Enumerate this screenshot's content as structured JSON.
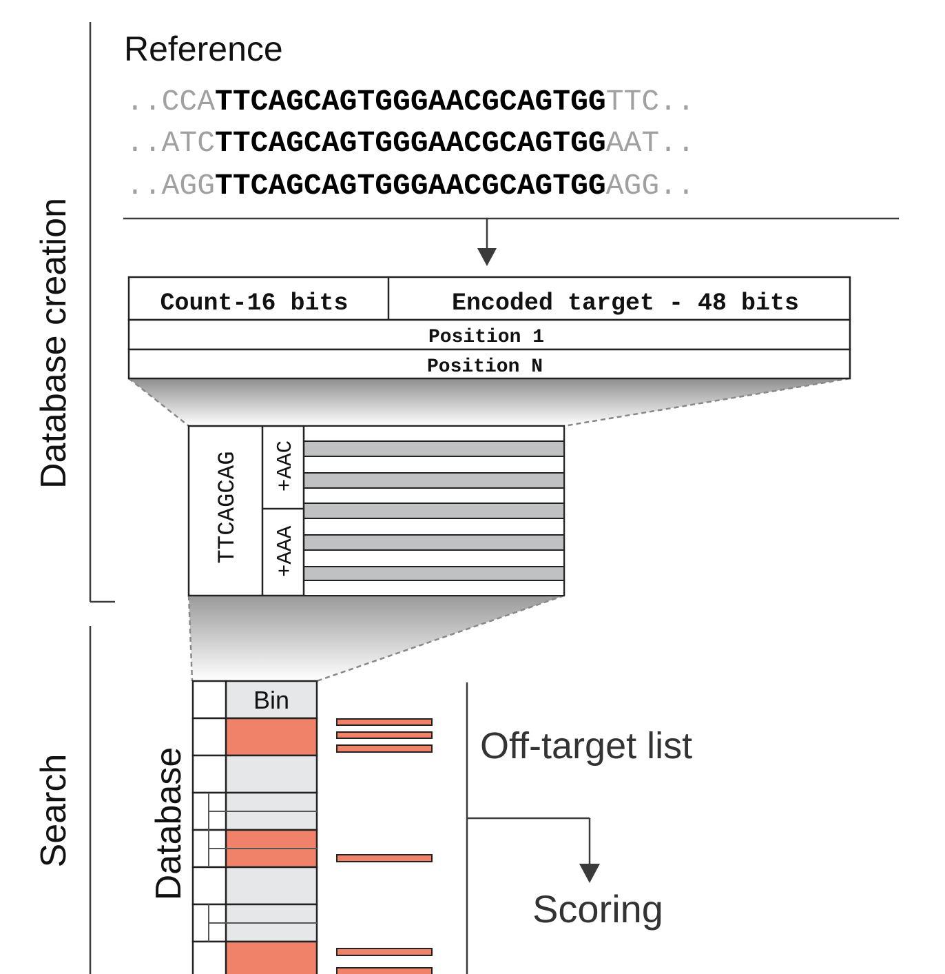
{
  "section_labels": {
    "database_creation": "Database creation",
    "search": "Search"
  },
  "reference": {
    "title": "Reference",
    "rows": [
      {
        "left_dots": "..",
        "prefix": "CCA",
        "core": "TTCAGCAGTGGGAACGCAGTGG",
        "suffix": "TTC",
        "right_dots": ".."
      },
      {
        "left_dots": "..",
        "prefix": "ATC",
        "core": "TTCAGCAGTGGGAACGCAGTGG",
        "suffix": "AAT",
        "right_dots": ".."
      },
      {
        "left_dots": "..",
        "prefix": "AGG",
        "core": "TTCAGCAGTGGGAACGCAGTGG",
        "suffix": "AGG",
        "right_dots": ".."
      }
    ]
  },
  "record": {
    "count_label": "Count-16 bits",
    "encoded_label": "Encoded target - 48 bits",
    "position_first": "Position 1",
    "position_last": "Position N"
  },
  "bin_detail": {
    "prefix_label": "TTCAGCAG",
    "suffix_labels": [
      "+AAC",
      "+AAA"
    ]
  },
  "search": {
    "database_label": "Database",
    "bin_label": "Bin",
    "offtarget_label": "Off-target list",
    "scoring_label": "Scoring"
  },
  "colors": {
    "highlight": "#f0826a",
    "bin_fill": "#e6e7e9",
    "row_gray": "#c0c1c3",
    "faded_text": "#a0a0a0",
    "line": "#3a3a3a"
  }
}
